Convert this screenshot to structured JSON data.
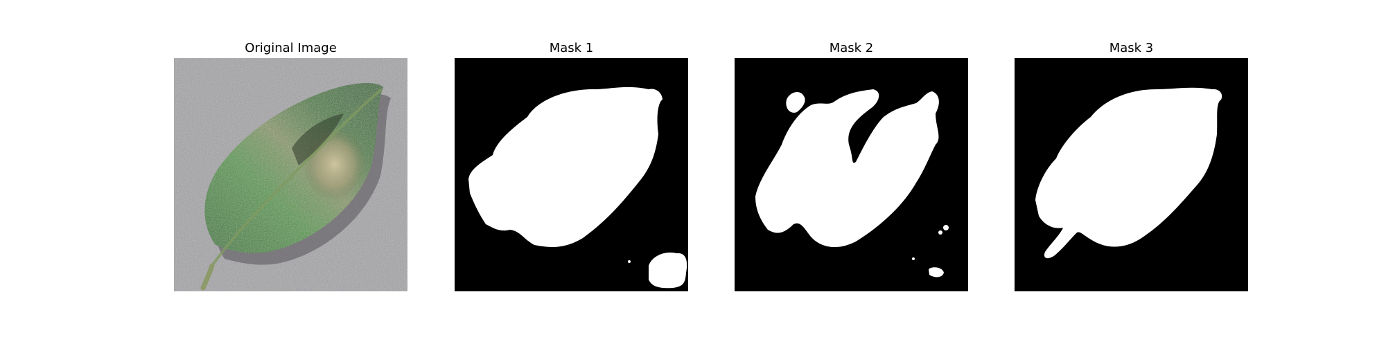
{
  "figure": {
    "panels": [
      {
        "title": "Original Image",
        "kind": "photo"
      },
      {
        "title": "Mask 1",
        "kind": "mask"
      },
      {
        "title": "Mask 2",
        "kind": "mask"
      },
      {
        "title": "Mask 3",
        "kind": "mask"
      }
    ]
  },
  "colors": {
    "background": "#ffffff",
    "mask_background": "#000000",
    "mask_foreground": "#ffffff",
    "leaf_green": "#4f8a44",
    "leaf_lesion": "#b9ad86",
    "surface_gray": "#9a9a9c"
  }
}
